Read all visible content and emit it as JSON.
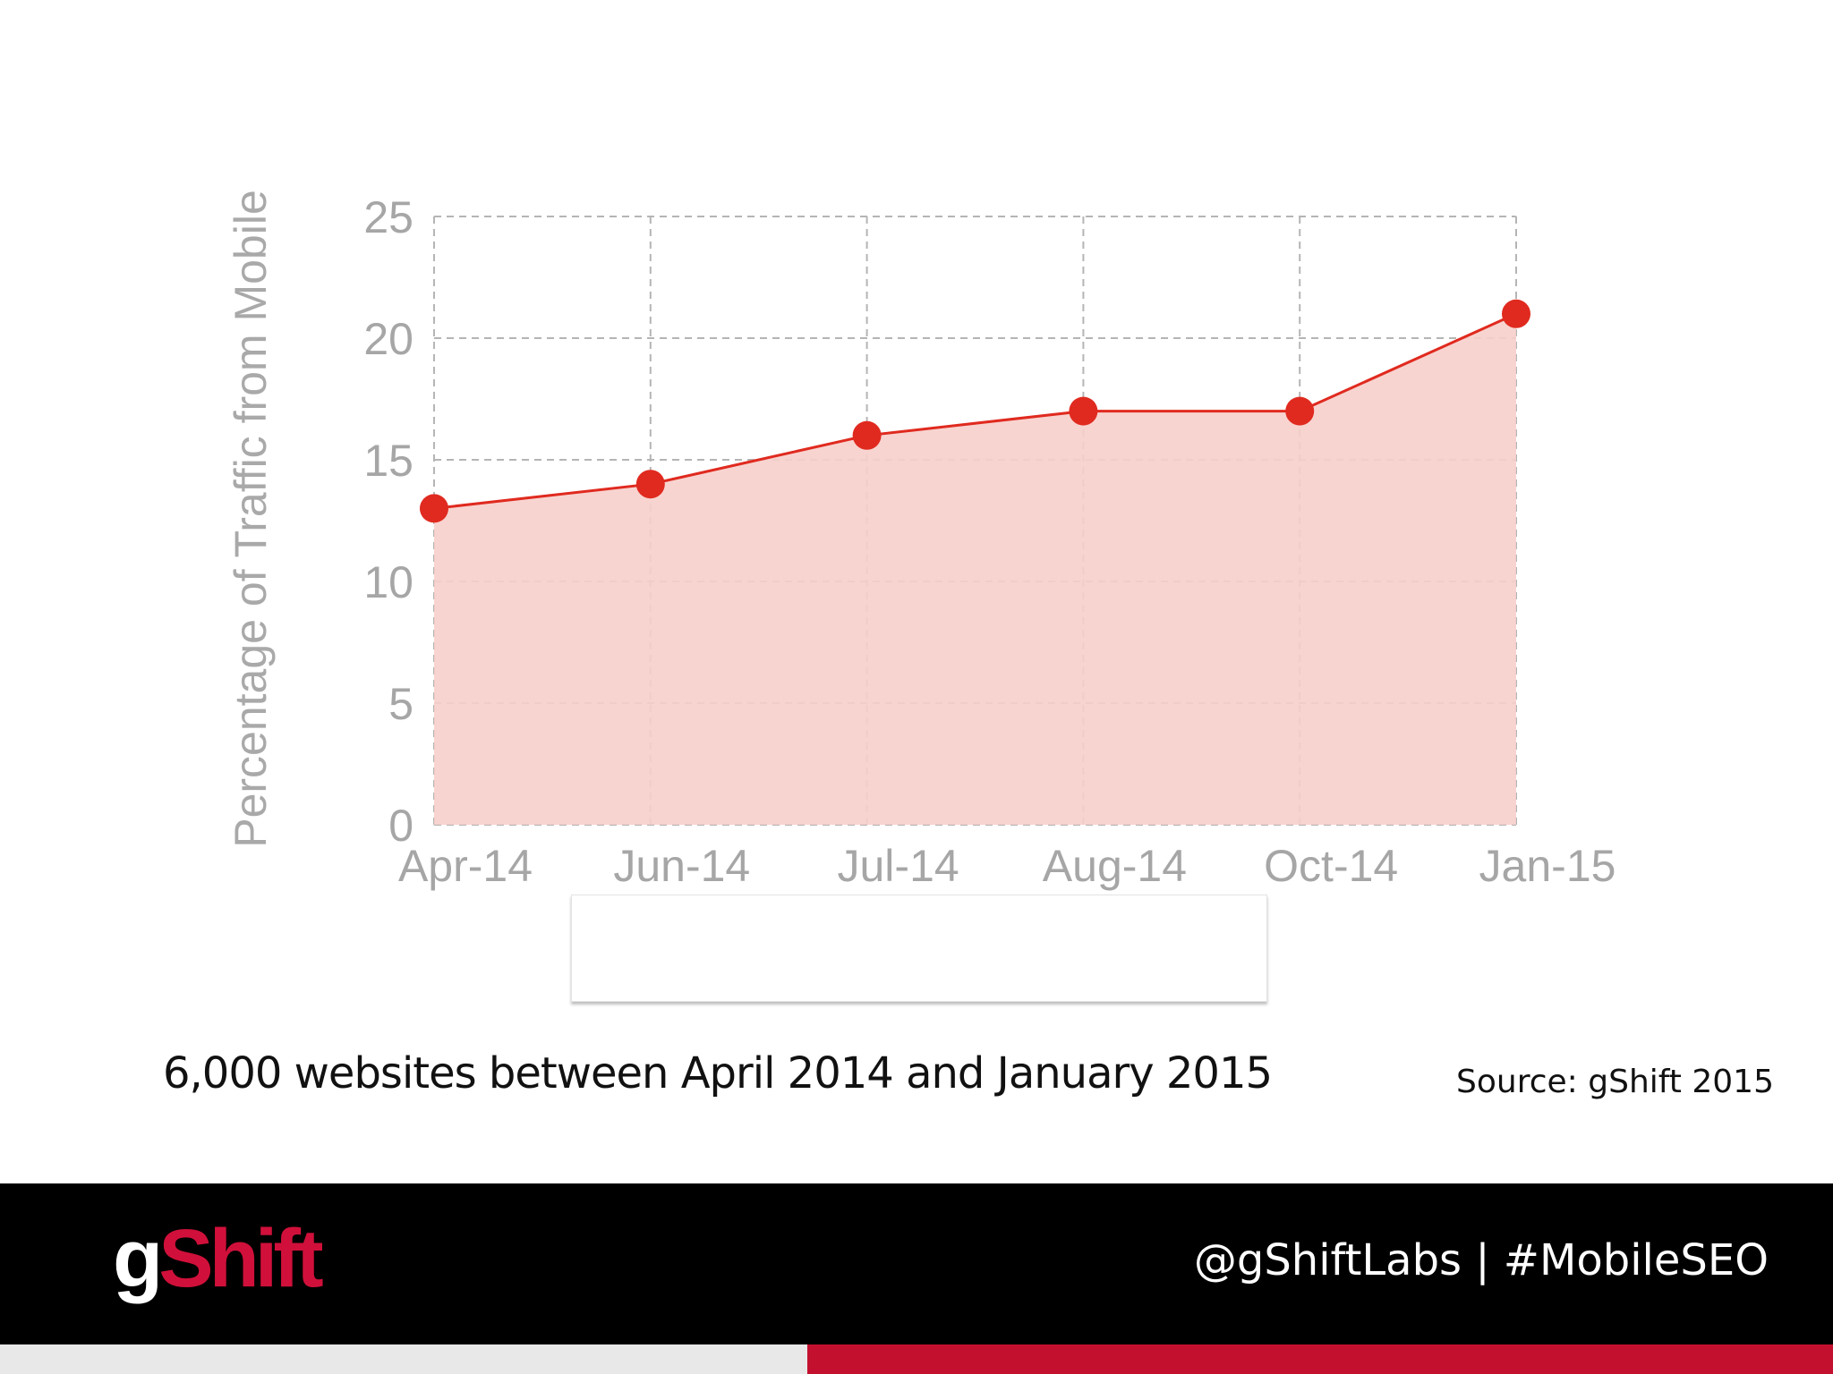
{
  "chart_data": {
    "type": "area",
    "categories": [
      "Apr-14",
      "Jun-14",
      "Jul-14",
      "Aug-14",
      "Oct-14",
      "Jan-15"
    ],
    "values": [
      13,
      14,
      16,
      17,
      17,
      21
    ],
    "ylabel": "Percentage of Traffic from Mobile",
    "ylim": [
      0,
      25
    ],
    "yticks": [
      0,
      5,
      10,
      15,
      20,
      25
    ],
    "grid": true,
    "colors": {
      "line": "#e02a1f",
      "fill": "#f7cfcb",
      "grid": "#b5b5b5"
    }
  },
  "caption": "6,000 websites between April 2014 and January 2015",
  "source": "Source: gShift 2015",
  "footer": {
    "logo": {
      "part1": "g",
      "part2": "Shift"
    },
    "handles": "@gShiftLabs  |  #MobileSEO",
    "colors": {
      "background": "#000000",
      "accent": "#c4102f"
    }
  }
}
